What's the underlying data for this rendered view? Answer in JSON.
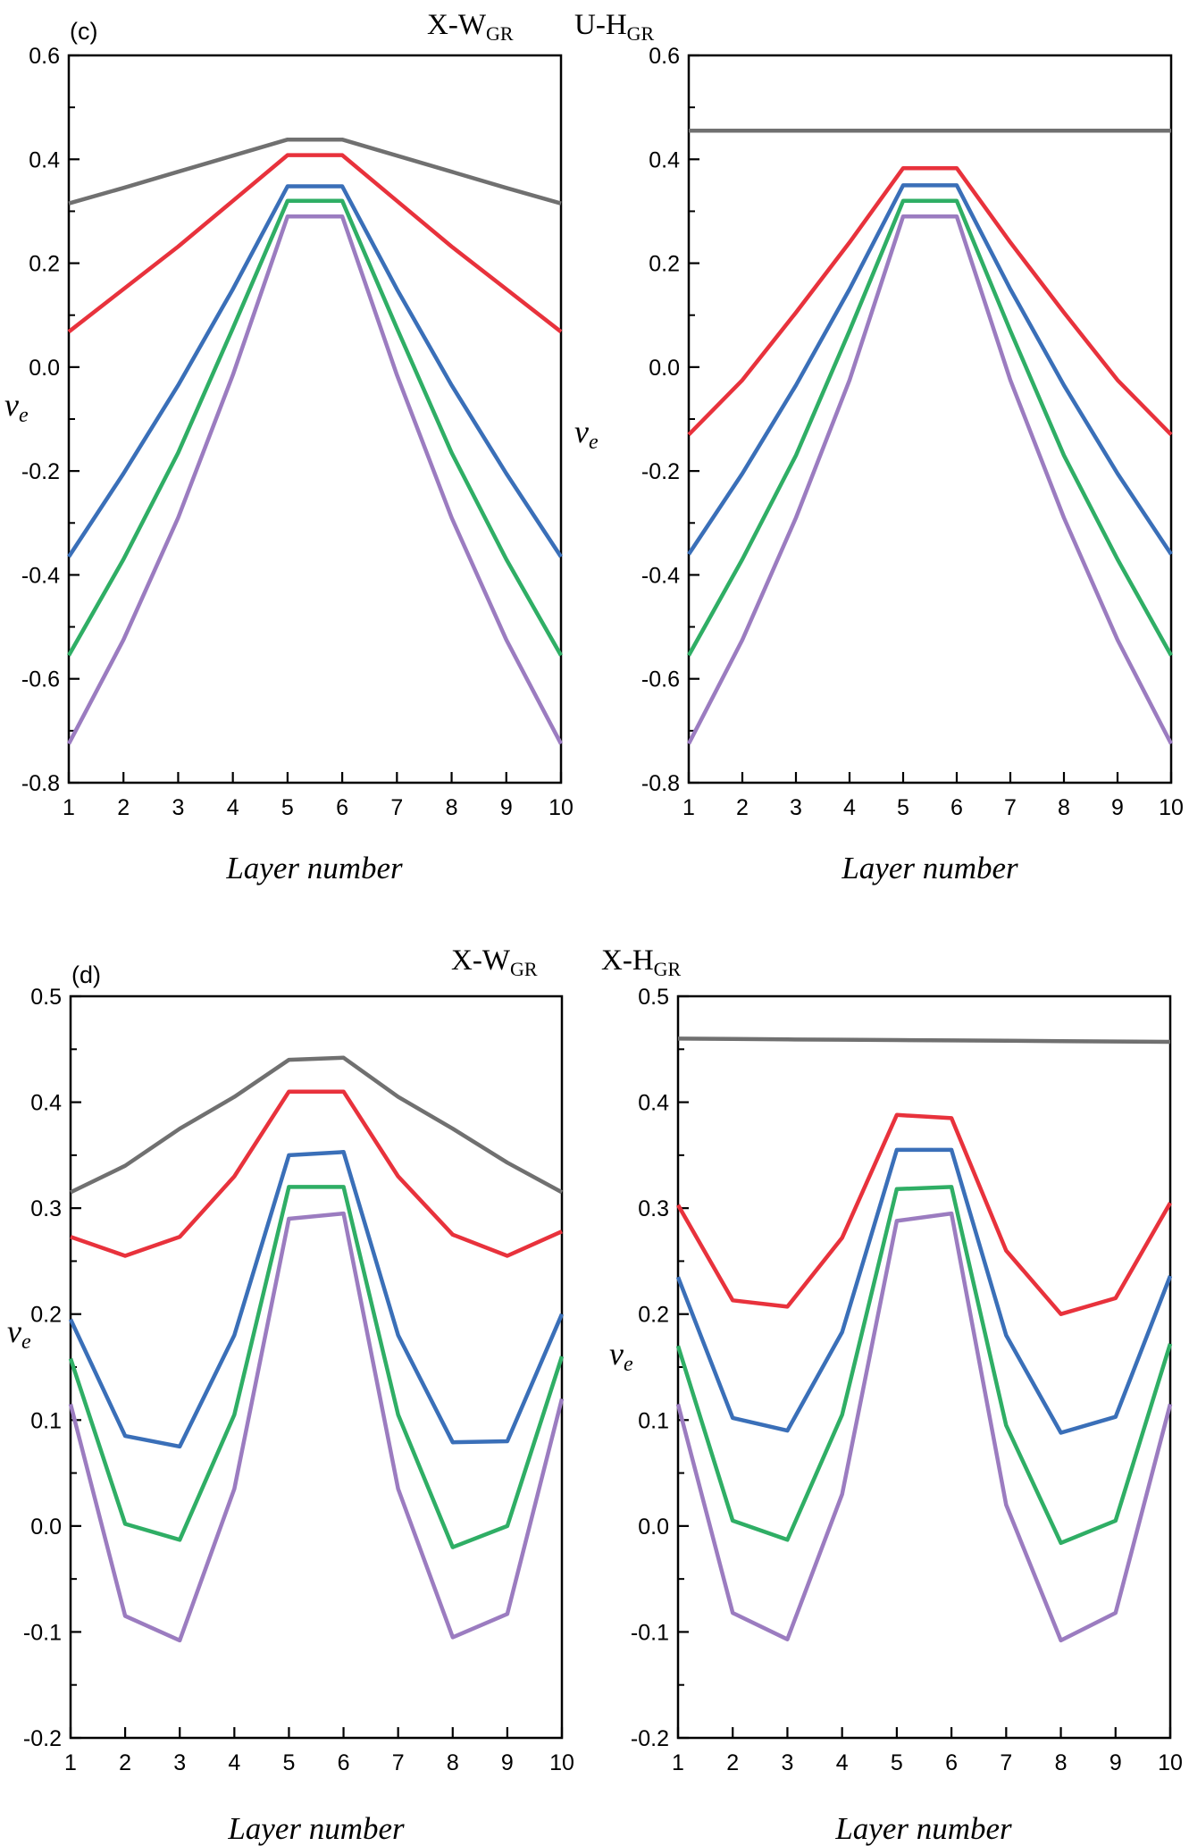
{
  "chart_data": [
    {
      "type": "line",
      "panel": "(c)",
      "title": "X-W",
      "title_sub": "GR",
      "xlabel": "Layer number",
      "ylabel": "v",
      "ylabel_sub": "e",
      "x": [
        1,
        2,
        3,
        4,
        5,
        6,
        7,
        8,
        9,
        10
      ],
      "xlim": [
        1,
        10
      ],
      "ylim": [
        -0.8,
        0.6
      ],
      "yticks": [
        -0.8,
        -0.6,
        -0.4,
        -0.2,
        0.0,
        0.2,
        0.4,
        0.6
      ],
      "ytick_labels": [
        "-0.8",
        "-0.6",
        "-0.4",
        "-0.2",
        "0.0",
        "0.2",
        "0.4",
        "0.6"
      ],
      "xticks": [
        1,
        2,
        3,
        4,
        5,
        6,
        7,
        8,
        9,
        10
      ],
      "xtick_labels": [
        "1",
        "2",
        "3",
        "4",
        "5",
        "6",
        "7",
        "8",
        "9",
        "10"
      ],
      "grid": false,
      "series": [
        {
          "color": "#707070",
          "values": [
            0.315,
            0.345,
            0.376,
            0.407,
            0.438,
            0.438,
            0.407,
            0.376,
            0.345,
            0.315
          ]
        },
        {
          "color": "#e8323c",
          "values": [
            0.068,
            0.15,
            0.232,
            0.32,
            0.408,
            0.408,
            0.32,
            0.232,
            0.15,
            0.068
          ]
        },
        {
          "color": "#3a6fb8",
          "values": [
            -0.365,
            -0.205,
            -0.035,
            0.15,
            0.348,
            0.348,
            0.15,
            -0.035,
            -0.205,
            -0.365
          ]
        },
        {
          "color": "#2fae65",
          "values": [
            -0.555,
            -0.37,
            -0.165,
            0.075,
            0.32,
            0.32,
            0.075,
            -0.165,
            -0.37,
            -0.555
          ]
        },
        {
          "color": "#9b7cc0",
          "values": [
            -0.725,
            -0.525,
            -0.29,
            -0.015,
            0.29,
            0.29,
            -0.015,
            -0.29,
            -0.525,
            -0.725
          ]
        }
      ]
    },
    {
      "type": "line",
      "title": "U-H",
      "title_sub": "GR",
      "xlabel": "Layer number",
      "ylabel": "v",
      "ylabel_sub": "e",
      "x": [
        1,
        2,
        3,
        4,
        5,
        6,
        7,
        8,
        9,
        10
      ],
      "xlim": [
        1,
        10
      ],
      "ylim": [
        -0.8,
        0.6
      ],
      "yticks": [
        -0.8,
        -0.6,
        -0.4,
        -0.2,
        0.0,
        0.2,
        0.4,
        0.6
      ],
      "ytick_labels": [
        "-0.8",
        "-0.6",
        "-0.4",
        "-0.2",
        "0.0",
        "0.2",
        "0.4",
        "0.6"
      ],
      "xticks": [
        1,
        2,
        3,
        4,
        5,
        6,
        7,
        8,
        9,
        10
      ],
      "xtick_labels": [
        "1",
        "2",
        "3",
        "4",
        "5",
        "6",
        "7",
        "8",
        "9",
        "10"
      ],
      "grid": false,
      "series": [
        {
          "color": "#707070",
          "values": [
            0.455,
            0.455,
            0.455,
            0.455,
            0.455,
            0.455,
            0.455,
            0.455,
            0.455,
            0.455
          ]
        },
        {
          "color": "#e8323c",
          "values": [
            -0.13,
            -0.025,
            0.105,
            0.24,
            0.383,
            0.383,
            0.24,
            0.105,
            -0.025,
            -0.13
          ]
        },
        {
          "color": "#3a6fb8",
          "values": [
            -0.36,
            -0.205,
            -0.035,
            0.15,
            0.35,
            0.35,
            0.15,
            -0.035,
            -0.205,
            -0.36
          ]
        },
        {
          "color": "#2fae65",
          "values": [
            -0.555,
            -0.37,
            -0.17,
            0.07,
            0.32,
            0.32,
            0.07,
            -0.17,
            -0.37,
            -0.555
          ]
        },
        {
          "color": "#9b7cc0",
          "values": [
            -0.725,
            -0.525,
            -0.29,
            -0.025,
            0.29,
            0.29,
            -0.025,
            -0.29,
            -0.525,
            -0.725
          ]
        }
      ]
    },
    {
      "type": "line",
      "panel": "(d)",
      "title": "X-W",
      "title_sub": "GR",
      "xlabel": "Layer number",
      "ylabel": "v",
      "ylabel_sub": "e",
      "x": [
        1,
        2,
        3,
        4,
        5,
        6,
        7,
        8,
        9,
        10
      ],
      "xlim": [
        1,
        10
      ],
      "ylim": [
        -0.2,
        0.5
      ],
      "yticks": [
        -0.2,
        -0.1,
        0.0,
        0.1,
        0.2,
        0.3,
        0.4,
        0.5
      ],
      "ytick_labels": [
        "-0.2",
        "-0.1",
        "0.0",
        "0.1",
        "0.2",
        "0.3",
        "0.4",
        "0.5"
      ],
      "xticks": [
        1,
        2,
        3,
        4,
        5,
        6,
        7,
        8,
        9,
        10
      ],
      "xtick_labels": [
        "1",
        "2",
        "3",
        "4",
        "5",
        "6",
        "7",
        "8",
        "9",
        "10"
      ],
      "grid": false,
      "series": [
        {
          "color": "#707070",
          "values": [
            0.315,
            0.34,
            0.375,
            0.405,
            0.44,
            0.442,
            0.405,
            0.375,
            0.343,
            0.315
          ]
        },
        {
          "color": "#e8323c",
          "values": [
            0.273,
            0.255,
            0.273,
            0.33,
            0.41,
            0.41,
            0.33,
            0.275,
            0.255,
            0.278
          ]
        },
        {
          "color": "#3a6fb8",
          "values": [
            0.195,
            0.085,
            0.075,
            0.18,
            0.35,
            0.353,
            0.18,
            0.079,
            0.08,
            0.2
          ]
        },
        {
          "color": "#2fae65",
          "values": [
            0.158,
            0.002,
            -0.013,
            0.105,
            0.32,
            0.32,
            0.105,
            -0.02,
            0.0,
            0.16
          ]
        },
        {
          "color": "#9b7cc0",
          "values": [
            0.115,
            -0.085,
            -0.108,
            0.035,
            0.29,
            0.295,
            0.035,
            -0.105,
            -0.083,
            0.12
          ]
        }
      ]
    },
    {
      "type": "line",
      "title": "X-H",
      "title_sub": "GR",
      "xlabel": "Layer number",
      "ylabel": "v",
      "ylabel_sub": "e",
      "x": [
        1,
        2,
        3,
        4,
        5,
        6,
        7,
        8,
        9,
        10
      ],
      "xlim": [
        1,
        10
      ],
      "ylim": [
        -0.2,
        0.5
      ],
      "yticks": [
        -0.2,
        -0.1,
        0.0,
        0.1,
        0.2,
        0.3,
        0.4,
        0.5
      ],
      "ytick_labels": [
        "-0.2",
        "-0.1",
        "0.0",
        "0.1",
        "0.2",
        "0.3",
        "0.4",
        "0.5"
      ],
      "xticks": [
        1,
        2,
        3,
        4,
        5,
        6,
        7,
        8,
        9,
        10
      ],
      "xtick_labels": [
        "1",
        "2",
        "3",
        "4",
        "5",
        "6",
        "7",
        "8",
        "9",
        "10"
      ],
      "grid": false,
      "series": [
        {
          "color": "#707070",
          "values": [
            0.46,
            0.4597,
            0.4593,
            0.459,
            0.4587,
            0.4583,
            0.458,
            0.4577,
            0.4573,
            0.457
          ]
        },
        {
          "color": "#e8323c",
          "values": [
            0.303,
            0.213,
            0.207,
            0.272,
            0.388,
            0.385,
            0.26,
            0.2,
            0.215,
            0.305
          ]
        },
        {
          "color": "#3a6fb8",
          "values": [
            0.235,
            0.102,
            0.09,
            0.183,
            0.355,
            0.355,
            0.18,
            0.088,
            0.103,
            0.236
          ]
        },
        {
          "color": "#2fae65",
          "values": [
            0.17,
            0.005,
            -0.013,
            0.105,
            0.318,
            0.32,
            0.095,
            -0.016,
            0.005,
            0.172
          ]
        },
        {
          "color": "#9b7cc0",
          "values": [
            0.115,
            -0.082,
            -0.107,
            0.03,
            0.288,
            0.295,
            0.02,
            -0.108,
            -0.082,
            0.115
          ]
        }
      ]
    }
  ]
}
